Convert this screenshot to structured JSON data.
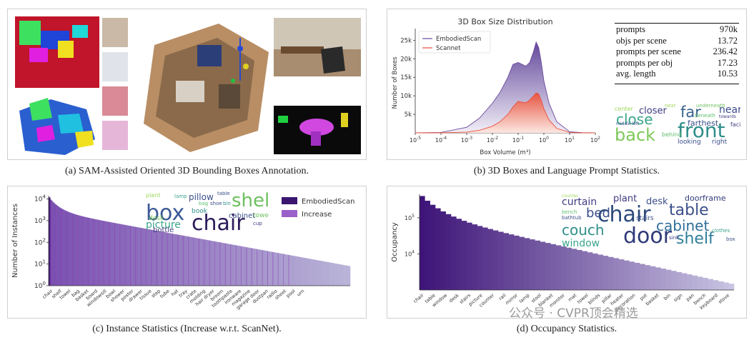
{
  "captions": {
    "a": "(a) SAM-Assisted Oriented 3D Bounding Boxes Annotation.",
    "b": "(b) 3D Boxes and Language Prompt Statistics.",
    "c": "(c) Instance Statistics (Increase w.r.t. ScanNet).",
    "d": "(d) Occupancy Statistics."
  },
  "stats_table": [
    {
      "label": "prompts",
      "value": "970k"
    },
    {
      "label": "objs per scene",
      "value": "13.72"
    },
    {
      "label": "prompts per scene",
      "value": "236.42"
    },
    {
      "label": "prompts per obj",
      "value": "17.23"
    },
    {
      "label": "avg. length",
      "value": "10.53"
    }
  ],
  "wordcloud_b": [
    "back",
    "front",
    "close",
    "far",
    "farthest",
    "closer",
    "near",
    "behind",
    "center",
    "looking",
    "right",
    "facing",
    "next",
    "underneath",
    "middle left",
    "beneath",
    "towards"
  ],
  "wordcloud_c": [
    "box",
    "chair",
    "shelf",
    "pillow",
    "picture",
    "desk",
    "bottle",
    "book",
    "cabinet",
    "towel",
    "table",
    "plant",
    "lamp",
    "cup",
    "bag",
    "shoe",
    "bin"
  ],
  "wordcloud_d": [
    "chair",
    "table",
    "door",
    "couch",
    "cabinet",
    "shelf",
    "bed",
    "curtain",
    "desk",
    "window",
    "plant",
    "doorframe",
    "stairs",
    "bathtub",
    "bench",
    "sink",
    "box",
    "clothes",
    "counter"
  ],
  "watermark": "公众号 · CVPR顶会精选",
  "chart_data": [
    {
      "type": "area",
      "title": "3D Box Size Distribution",
      "xlabel": "Box Volume (m^3)",
      "ylabel": "Number of Boxes",
      "xscale": "log",
      "xlim": [
        -5,
        2
      ],
      "x_ticks": [
        "10^-5",
        "10^-4",
        "10^-3",
        "10^-2",
        "10^-1",
        "10^0",
        "10^1",
        "10^2"
      ],
      "ylim": [
        0,
        27000
      ],
      "y_ticks": [
        "5k",
        "10k",
        "15k",
        "20k",
        "25k"
      ],
      "legend": "top-left",
      "x": [
        -5,
        -4,
        -3,
        -2.5,
        -2,
        -1.7,
        -1.4,
        -1.2,
        -1.0,
        -0.85,
        -0.7,
        -0.55,
        -0.4,
        -0.3,
        -0.2,
        -0.1,
        0.0,
        0.2,
        0.5,
        1.0,
        1.5,
        2.0
      ],
      "series": [
        {
          "name": "EmbodiedScan",
          "color": "#6a4a9c",
          "values": [
            0,
            100,
            1500,
            4000,
            8000,
            11000,
            15000,
            18500,
            19000,
            18500,
            18000,
            19000,
            22000,
            24500,
            23000,
            19000,
            14000,
            8000,
            3000,
            300,
            50,
            0
          ]
        },
        {
          "name": "Scannet",
          "color": "#e8503a",
          "values": [
            0,
            0,
            200,
            700,
            1800,
            3000,
            5000,
            7000,
            8500,
            8300,
            8100,
            8900,
            10000,
            10800,
            10500,
            8800,
            6500,
            3500,
            1200,
            100,
            0,
            0
          ]
        }
      ]
    },
    {
      "type": "bar",
      "xlabel": "",
      "ylabel": "Number of Instances",
      "yscale": "log",
      "ylim": [
        1,
        10000
      ],
      "y_ticks": [
        "10^0",
        "10^1",
        "10^2",
        "10^3",
        "10^4"
      ],
      "legend": "top-right",
      "series_names": [
        "EmbodiedScan",
        "Increase"
      ],
      "category_labels": [
        "chair",
        "shelf",
        "towel",
        "bag",
        "basket",
        "board",
        "windowsill",
        "bowl",
        "shower",
        "poster",
        "drawer",
        "tissue",
        "step",
        "tube",
        "hat",
        "tray",
        "crate",
        "molding",
        "hair dryer",
        "broom",
        "toothpaste",
        "ironware",
        "magazine",
        "garage door",
        "dustpan",
        "radio",
        "sheet",
        "pool",
        "urn"
      ],
      "n_bars": 400,
      "max_value": 12000,
      "min_value": 8
    },
    {
      "type": "bar",
      "xlabel": "",
      "ylabel": "Occupancy",
      "yscale": "log",
      "y_ticks": [
        "10^4",
        "10^5"
      ],
      "category_labels": [
        "chair",
        "table",
        "window",
        "desk",
        "stairs",
        "picture",
        "counter",
        "rail",
        "mirror",
        "lamp",
        "stool",
        "blanket",
        "monitor",
        "mat",
        "towel",
        "blinds",
        "pillar",
        "heater",
        "decoration",
        "pot",
        "basket",
        "bin",
        "sign",
        "pan",
        "bench",
        "keyboard",
        "stove"
      ],
      "n_bars": 60,
      "max_value": 400000,
      "min_value": 1500
    }
  ]
}
